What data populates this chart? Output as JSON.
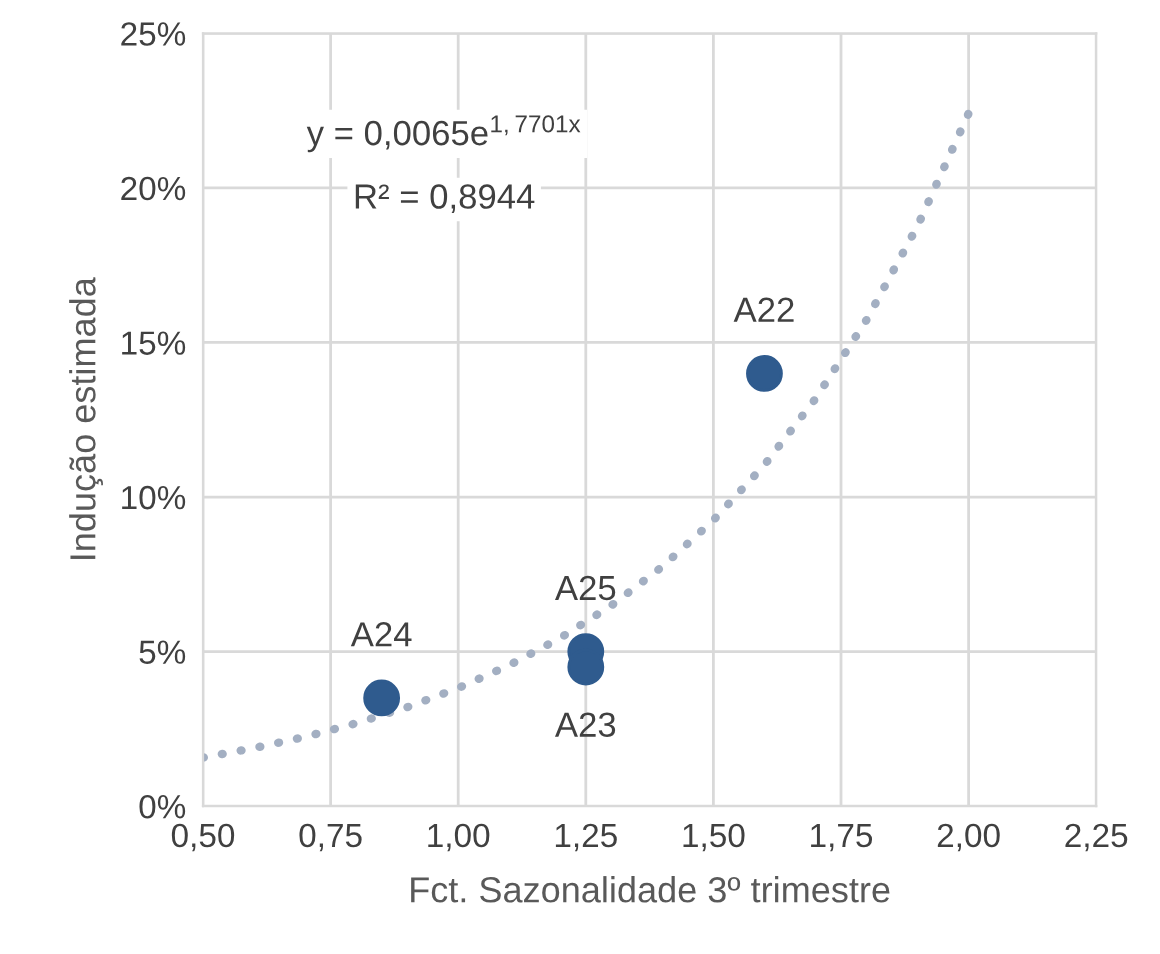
{
  "chart_data": {
    "type": "scatter",
    "xlabel": "Fct. Sazonalidade 3º trimestre",
    "ylabel": "Indução estimada",
    "series": [
      {
        "type": "line",
        "color": "#a3afc2",
        "line_style": "dotted",
        "x": [
          0.5,
          0.6,
          0.7,
          0.8,
          0.9,
          1.0,
          1.1,
          1.2,
          1.3,
          1.4,
          1.5,
          1.6,
          1.7,
          1.8,
          1.9,
          2.0
        ],
        "values": [
          1.57,
          1.88,
          2.24,
          2.68,
          3.2,
          3.82,
          4.56,
          5.44,
          6.49,
          7.75,
          9.25,
          11.04,
          13.18,
          15.73,
          18.77,
          22.41
        ]
      },
      {
        "color": "#2f5b8e",
        "marker": "circle",
        "x": [
          0.85,
          1.25,
          1.25,
          1.6
        ],
        "values": [
          3.5,
          5.0,
          4.5,
          14.0
        ]
      }
    ],
    "annotations": [
      "y = 0,0065e$^{1,7701x}$",
      "R² = 0,8944",
      {
        "text": "A24",
        "x": 0.85,
        "y": 3.5
      },
      {
        "text": "A25",
        "x": 1.25,
        "y": 5.0
      },
      {
        "text": "A23",
        "x": 1.25,
        "y": 4.5
      },
      {
        "text": "A22",
        "x": 1.6,
        "y": 14.0
      }
    ],
    "xlim": [
      0.5,
      2.25
    ],
    "xticks": [
      {
        "value": 0.5,
        "label": "0,50"
      },
      {
        "value": 0.75,
        "label": "0,75"
      },
      {
        "value": 1.0,
        "label": "1,00"
      },
      {
        "value": 1.25,
        "label": "1,25"
      },
      {
        "value": 1.5,
        "label": "1,50"
      },
      {
        "value": 1.75,
        "label": "1,75"
      },
      {
        "value": 2.0,
        "label": "2,00"
      },
      {
        "value": 2.25,
        "label": "2,25"
      }
    ],
    "ylim": [
      0,
      25
    ],
    "yticks": [
      {
        "value": 0,
        "label": "0%"
      },
      {
        "value": 5,
        "label": "5%"
      },
      {
        "value": 10,
        "label": "10%"
      },
      {
        "value": 15,
        "label": "15%"
      },
      {
        "value": 20,
        "label": "20%"
      },
      {
        "value": 25,
        "label": "25%"
      }
    ],
    "grid": true
  }
}
